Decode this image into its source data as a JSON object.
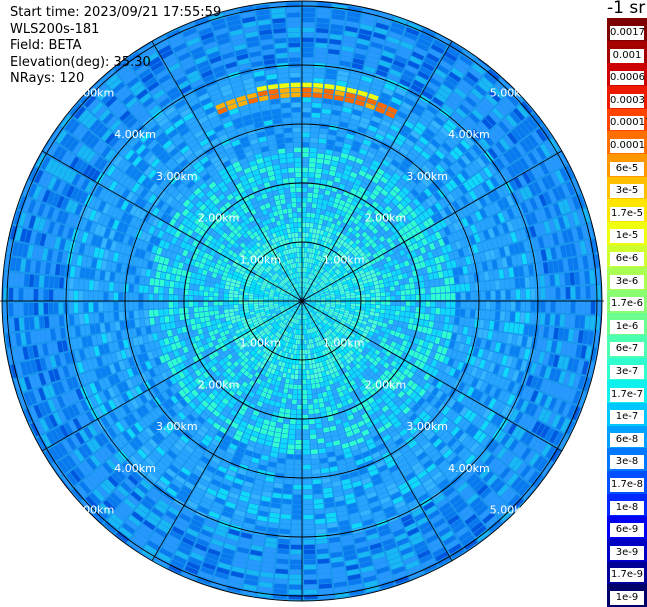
{
  "meta": {
    "start_time": "Start time: 2023/09/21 17:55:59",
    "instrument": "WLS200s-181",
    "field": "Field: BETA",
    "elevation": "Elevation(deg): 35.30",
    "nrays": "NRays: 120"
  },
  "colorbar": {
    "unit": "-1 sr",
    "labels": [
      "0.0017",
      "0.001",
      "0.0006",
      "0.0003",
      "0.00017",
      "0.0001",
      "6e-5",
      "3e-5",
      "1.7e-5",
      "1e-5",
      "6e-6",
      "3e-6",
      "1.7e-6",
      "1e-6",
      "6e-7",
      "3e-7",
      "1.7e-7",
      "1e-7",
      "6e-8",
      "3e-8",
      "1.7e-8",
      "1e-8",
      "6e-9",
      "3e-9",
      "1.7e-9",
      "1e-9"
    ],
    "colors": [
      "#7f0000",
      "#a50000",
      "#cc0000",
      "#ee1a00",
      "#ff4400",
      "#ff7000",
      "#ff9800",
      "#ffc000",
      "#ffe600",
      "#f0ff10",
      "#cfff2f",
      "#a9ff52",
      "#8aff72",
      "#6cff90",
      "#4dffb0",
      "#2fffcf",
      "#10f0ef",
      "#00c8ff",
      "#00a0ff",
      "#0078ff",
      "#0050ff",
      "#0028ff",
      "#0000f0",
      "#0000c4",
      "#000098",
      "#00006a"
    ]
  },
  "range_labels": [
    "1.00km",
    "2.00km",
    "3.00km",
    "4.00km",
    "5.00km"
  ],
  "ring_ranges_km": [
    1,
    2,
    3,
    4,
    5
  ]
}
